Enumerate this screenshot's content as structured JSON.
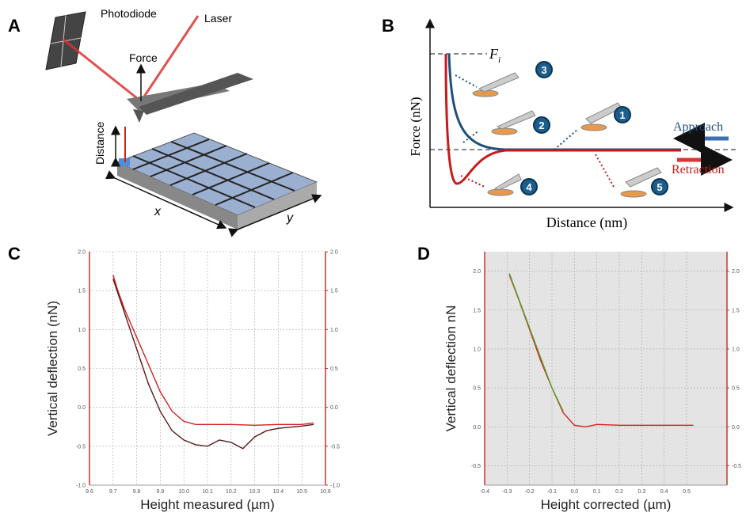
{
  "panels": {
    "A": {
      "letter": "A",
      "photodiode": "Photodiode",
      "laser": "Laser",
      "force": "Force",
      "distance": "Distance",
      "x": "x",
      "y": "y"
    },
    "B": {
      "letter": "B",
      "force_symbol": "F",
      "force_subscript": "i",
      "y_label": "Force (nN)",
      "x_label": "Distance (nm)",
      "approach": "Approach",
      "retraction": "Retraction",
      "steps": [
        "1",
        "2",
        "3",
        "4",
        "5"
      ]
    },
    "C": {
      "letter": "C"
    },
    "D": {
      "letter": "D"
    }
  },
  "chart_data": [
    {
      "type": "line",
      "x_label": "Height measured (µm)",
      "y_label": "Vertical deflection (nN)",
      "xlim": [
        9.6,
        10.6
      ],
      "xticks": [
        9.6,
        9.7,
        9.8,
        9.9,
        {
          "value": 10.0,
          "label": "10.0"
        },
        10.1,
        10.2,
        10.3,
        10.4,
        10.5,
        10.6
      ],
      "ylim": [
        -1.0,
        2.0
      ],
      "yticks": [
        {
          "value": -1.0,
          "label": "-1.0"
        },
        -0.5,
        {
          "value": 0,
          "label": "0.0"
        },
        0.5,
        {
          "value": 1.0,
          "label": "1.0"
        },
        1.5,
        {
          "value": 2.0,
          "label": "2.0"
        }
      ],
      "y2lim": [
        -1.0,
        2.0
      ],
      "y2ticks": [
        {
          "value": -1.0,
          "label": "-1.0"
        },
        -0.5,
        {
          "value": 0,
          "label": "0.0"
        },
        0.5,
        {
          "value": 1.0,
          "label": "1.0"
        },
        1.5,
        {
          "value": 2.0,
          "label": "2.0"
        }
      ],
      "grid": true,
      "background": "#ffffff",
      "series": [
        {
          "color": "#d42020",
          "x": [
            9.7,
            9.72,
            9.75,
            9.8,
            9.85,
            9.9,
            9.95,
            10.0,
            10.05,
            10.1,
            10.2,
            10.3,
            10.4,
            10.5,
            10.55
          ],
          "values": [
            1.7,
            1.5,
            1.25,
            0.9,
            0.55,
            0.2,
            -0.05,
            -0.18,
            -0.22,
            -0.22,
            -0.22,
            -0.23,
            -0.22,
            -0.22,
            -0.2
          ]
        },
        {
          "color": "#5a1a1a",
          "x": [
            9.7,
            9.75,
            9.8,
            9.85,
            9.9,
            9.95,
            10.0,
            10.05,
            10.1,
            10.15,
            10.2,
            10.25,
            10.3,
            10.35,
            10.4,
            10.5,
            10.55
          ],
          "values": [
            1.65,
            1.2,
            0.75,
            0.3,
            -0.05,
            -0.3,
            -0.42,
            -0.48,
            -0.5,
            -0.42,
            -0.45,
            -0.53,
            -0.38,
            -0.3,
            -0.27,
            -0.24,
            -0.22
          ]
        }
      ]
    },
    {
      "type": "line",
      "x_label": "Height corrected (µm)",
      "y_label": "Vertical deflection nN",
      "xlim": [
        -0.4,
        0.68
      ],
      "xticks": [
        -0.4,
        -0.3,
        -0.2,
        -0.1,
        {
          "value": 0,
          "label": "0.0"
        },
        0.1,
        0.2,
        0.3,
        0.4,
        0.5
      ],
      "ylim": [
        -0.75,
        2.25
      ],
      "yticks": [
        -0.5,
        {
          "value": 0,
          "label": "0.0"
        },
        0.5,
        {
          "value": 1.0,
          "label": "1.0"
        },
        1.5,
        {
          "value": 2.0,
          "label": "2.0"
        }
      ],
      "y2lim": [
        -0.75,
        2.25
      ],
      "y2ticks": [
        -0.5,
        {
          "value": 0,
          "label": "0.0"
        },
        0.5,
        {
          "value": 1.0,
          "label": "1.0"
        },
        1.5,
        {
          "value": 2.0,
          "label": "2.0"
        }
      ],
      "grid": true,
      "background": "#e4e4e4",
      "series": [
        {
          "color": "#d42020",
          "x": [
            -0.29,
            -0.25,
            -0.2,
            -0.15,
            -0.1,
            -0.05,
            0,
            0.05,
            0.1,
            0.2,
            0.3,
            0.4,
            0.53
          ],
          "values": [
            1.95,
            1.65,
            1.25,
            0.85,
            0.5,
            0.18,
            0.02,
            0.0,
            0.03,
            0.02,
            0.02,
            0.02,
            0.02
          ]
        },
        {
          "color": "#5aa02a",
          "x": [
            -0.29,
            -0.2,
            -0.1,
            -0.05
          ],
          "values": [
            1.97,
            1.27,
            0.5,
            0.2
          ]
        }
      ]
    }
  ]
}
